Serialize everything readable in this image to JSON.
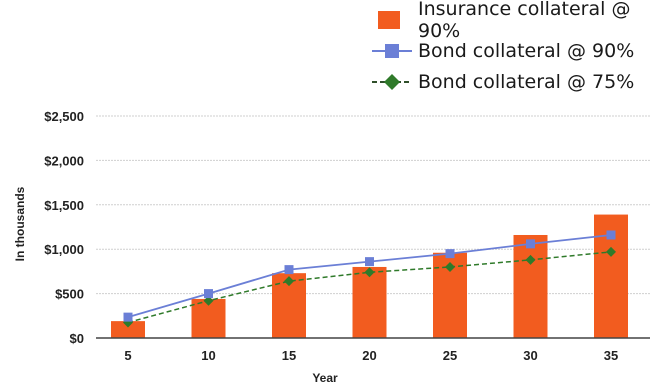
{
  "chart_data": {
    "type": "bar",
    "xlabel": "Year",
    "ylabel": "In thousands",
    "categories": [
      "5",
      "10",
      "15",
      "20",
      "25",
      "30",
      "35"
    ],
    "ylim": [
      0,
      2500
    ],
    "yticks": [
      "$0",
      "$500",
      "$1,000",
      "$1,500",
      "$2,000",
      "$2,500"
    ],
    "ytick_values": [
      0,
      500,
      1000,
      1500,
      2000,
      2500
    ],
    "grid": true,
    "legend_position": "top-right",
    "series": [
      {
        "name": "Insurance collateral @ 90%",
        "kind": "bar",
        "color": "#f25c1f",
        "values": [
          190,
          440,
          730,
          800,
          960,
          1160,
          1390
        ]
      },
      {
        "name": "Bond collateral @ 90%",
        "kind": "line",
        "style": "solid",
        "marker": "square",
        "color": "#6b7fd6",
        "values": [
          235,
          500,
          770,
          860,
          950,
          1060,
          1160
        ]
      },
      {
        "name": "Bond collateral @ 75%",
        "kind": "line",
        "style": "dashed",
        "marker": "diamond",
        "color": "#2f7a2a",
        "values": [
          175,
          420,
          640,
          740,
          800,
          880,
          970
        ]
      }
    ]
  }
}
